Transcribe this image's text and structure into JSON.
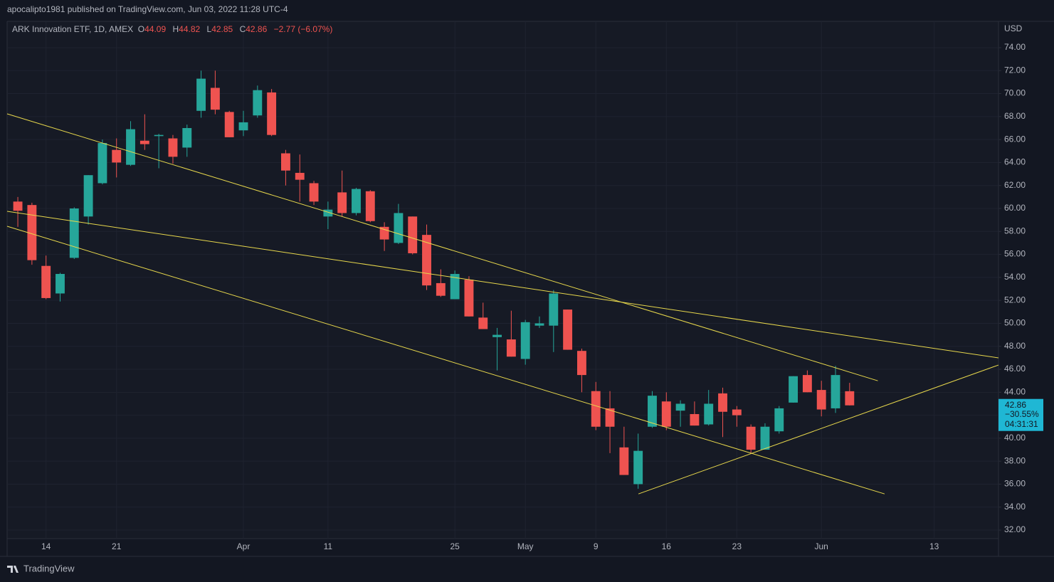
{
  "header": {
    "published": "apocalipto1981 published on TradingView.com, Jun 03, 2022 11:28 UTC-4"
  },
  "footer": {
    "brand": "TradingView"
  },
  "chart_data": {
    "type": "candlestick",
    "title": "ARK Innovation ETF, 1D, AMEX",
    "currency": "USD",
    "ohlc_letters": [
      "O",
      "H",
      "L",
      "C"
    ],
    "change": "−2.77 (−6.07%)",
    "last_change": "−30.55%",
    "countdown": "04:31:31",
    "up_color": "#26a69a",
    "down_color": "#ef5350",
    "price_box_color": "#1fb7d4",
    "trendline_color": "#e8d84c",
    "grid": true,
    "open": [
      60.6,
      60.3,
      55.0,
      52.6,
      55.7,
      59.3,
      62.2,
      65.1,
      63.8,
      65.9,
      66.3,
      66.1,
      65.3,
      68.5,
      70.5,
      68.4,
      66.8,
      68.1,
      70.1,
      64.8,
      63.1,
      62.2,
      59.3,
      61.4,
      59.6,
      61.5,
      58.4,
      57.0,
      59.3,
      57.7,
      53.5,
      52.1,
      53.8,
      50.5,
      48.8,
      48.6,
      46.9,
      49.8,
      49.8,
      51.2,
      47.6,
      44.1,
      42.6,
      39.2,
      36.0,
      41.0,
      43.2,
      42.4,
      42.1,
      41.2,
      43.9,
      42.5,
      41.0,
      39.0,
      40.6,
      43.1,
      45.5,
      44.2,
      42.6,
      44.09
    ],
    "high": [
      61.0,
      60.5,
      55.9,
      54.4,
      60.1,
      62.9,
      66.0,
      66.1,
      67.6,
      68.2,
      66.5,
      66.4,
      67.3,
      72.0,
      72.0,
      68.5,
      68.5,
      70.7,
      70.4,
      65.1,
      64.7,
      62.4,
      60.6,
      63.3,
      61.8,
      61.6,
      58.8,
      60.4,
      59.3,
      58.6,
      54.7,
      54.6,
      54.1,
      51.8,
      49.6,
      51.1,
      50.3,
      50.6,
      52.9,
      51.2,
      47.8,
      44.9,
      44.1,
      41.0,
      40.4,
      44.1,
      44.0,
      43.3,
      43.2,
      44.2,
      44.4,
      42.8,
      41.2,
      41.3,
      42.8,
      45.4,
      45.9,
      45.0,
      46.3,
      44.82
    ],
    "low": [
      58.4,
      55.1,
      52.1,
      51.9,
      55.6,
      58.6,
      62.1,
      62.7,
      63.7,
      65.1,
      63.5,
      63.9,
      64.5,
      67.9,
      68.2,
      66.2,
      66.3,
      67.9,
      66.3,
      62.0,
      60.6,
      60.3,
      58.2,
      59.3,
      59.4,
      58.8,
      56.3,
      56.9,
      56.0,
      52.9,
      52.3,
      52.1,
      50.6,
      49.5,
      45.9,
      47.1,
      46.4,
      49.6,
      47.5,
      47.7,
      44.0,
      40.7,
      38.7,
      36.8,
      35.6,
      40.9,
      40.7,
      41.0,
      41.1,
      41.1,
      40.1,
      41.0,
      38.7,
      39.0,
      40.4,
      43.1,
      44.0,
      41.9,
      42.2,
      42.85
    ],
    "close": [
      59.8,
      55.5,
      52.2,
      54.3,
      60.0,
      62.9,
      65.7,
      64.0,
      66.9,
      65.6,
      66.4,
      64.5,
      67.0,
      71.3,
      68.6,
      66.2,
      67.5,
      70.3,
      66.4,
      63.3,
      62.5,
      60.6,
      59.9,
      59.6,
      61.7,
      58.9,
      57.3,
      59.6,
      56.1,
      53.3,
      52.4,
      54.3,
      50.6,
      49.5,
      49.0,
      47.1,
      50.1,
      50.0,
      52.6,
      47.7,
      45.5,
      41.0,
      41.0,
      36.8,
      38.9,
      43.7,
      41.0,
      43.0,
      41.1,
      43.0,
      42.3,
      42.0,
      39.0,
      41.0,
      42.6,
      45.4,
      44.0,
      42.5,
      45.5,
      42.86
    ],
    "xlim": [
      -0.76,
      69.56
    ],
    "xticks": [
      {
        "value": 2,
        "label": "14"
      },
      {
        "value": 7,
        "label": "21"
      },
      {
        "value": 16,
        "label": "Apr"
      },
      {
        "value": 22,
        "label": "11"
      },
      {
        "value": 31,
        "label": "25"
      },
      {
        "value": 36,
        "label": "May"
      },
      {
        "value": 41,
        "label": "9"
      },
      {
        "value": 46,
        "label": "16"
      },
      {
        "value": 51,
        "label": "23"
      },
      {
        "value": 57,
        "label": "Jun"
      },
      {
        "value": 65,
        "label": "13"
      }
    ],
    "ylim": [
      31.26,
      76.29
    ],
    "yticks": [
      {
        "value": 32,
        "label": "32.00"
      },
      {
        "value": 34,
        "label": "34.00"
      },
      {
        "value": 36,
        "label": "36.00"
      },
      {
        "value": 38,
        "label": "38.00"
      },
      {
        "value": 40,
        "label": "40.00"
      },
      {
        "value": 42,
        "label": "42.00"
      },
      {
        "value": 44,
        "label": "44.00"
      },
      {
        "value": 46,
        "label": "46.00"
      },
      {
        "value": 48,
        "label": "48.00"
      },
      {
        "value": 50,
        "label": "50.00"
      },
      {
        "value": 52,
        "label": "52.00"
      },
      {
        "value": 54,
        "label": "54.00"
      },
      {
        "value": 56,
        "label": "56.00"
      },
      {
        "value": 58,
        "label": "58.00"
      },
      {
        "value": 60,
        "label": "60.00"
      },
      {
        "value": 62,
        "label": "62.00"
      },
      {
        "value": 64,
        "label": "64.00"
      },
      {
        "value": 66,
        "label": "66.00"
      },
      {
        "value": 68,
        "label": "68.00"
      },
      {
        "value": 70,
        "label": "70.00"
      },
      {
        "value": 72,
        "label": "72.00"
      },
      {
        "value": 74,
        "label": "74.00"
      }
    ],
    "trendlines": [
      {
        "x": [
          -0.76,
          61.0
        ],
        "y": [
          68.24,
          45.0
        ]
      },
      {
        "x": [
          -0.76,
          69.56
        ],
        "y": [
          59.75,
          46.99
        ]
      },
      {
        "x": [
          -0.76,
          61.48
        ],
        "y": [
          58.45,
          35.15
        ]
      },
      {
        "x": [
          44.02,
          69.56
        ],
        "y": [
          35.15,
          46.37
        ]
      }
    ]
  }
}
